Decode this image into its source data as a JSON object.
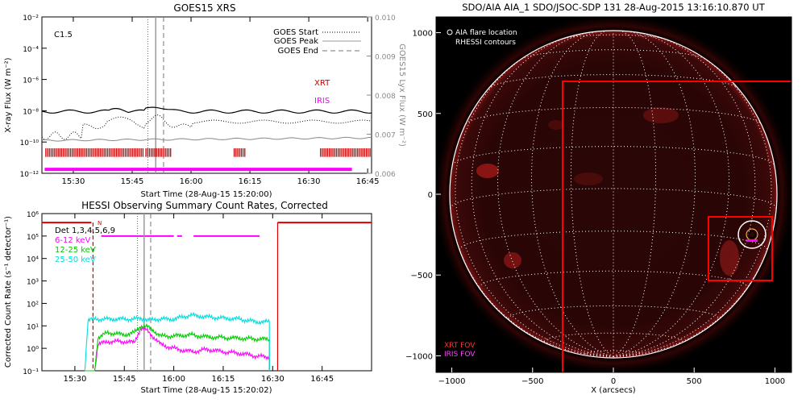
{
  "chart_data": [
    {
      "type": "line",
      "title": "GOES15 XRS",
      "xlabel": "Start Time (28-Aug-15 15:20:00)",
      "ylabel": "X-ray Flux (W m⁻²)",
      "y2label": "GOES15 Lyx Flux (W m⁻²)",
      "xlim": [
        22,
        84
      ],
      "ylim": [
        -12,
        -2
      ],
      "yscale": "log",
      "y2lim": [
        0.006,
        0.01
      ],
      "x_ticks": [
        {
          "v": 30,
          "label": "15:30"
        },
        {
          "v": 45,
          "label": "15:45"
        },
        {
          "v": 60,
          "label": "16:00"
        },
        {
          "v": 75,
          "label": "16:15"
        }
      ],
      "x_tick_labels_extra": [
        "16:30",
        "16:45"
      ],
      "x_ticks_extra_v": [
        90,
        105
      ],
      "y_tick_labels": [
        "10⁻¹²",
        "10⁻¹⁰",
        "10⁻⁸",
        "10⁻⁶",
        "10⁻⁴",
        "10⁻²"
      ],
      "y_tick_exp": [
        -12,
        -10,
        -8,
        -6,
        -4,
        -2
      ],
      "y2_tick_labels": [
        "0.006",
        "0.007",
        "0.008",
        "0.009",
        "0.010"
      ],
      "y2_tick_vals": [
        0.006,
        0.007,
        0.008,
        0.009,
        0.01
      ],
      "class_label": "C1.5",
      "legend": [
        {
          "name": "GOES Start",
          "style": "dotted"
        },
        {
          "name": "GOES Peak",
          "style": "solid"
        },
        {
          "name": "GOES End",
          "style": "dashed"
        }
      ],
      "event_lines": {
        "start": 49,
        "peak": 51,
        "end": 53
      },
      "labels": {
        "xrt": "XRT",
        "iris": "IRIS"
      },
      "colors": {
        "xrt": "#cc0000",
        "iris": "#ff00ff",
        "axis": "#000000",
        "lyx": "#888888"
      }
    },
    {
      "type": "line",
      "title": "HESSI Observing Summary Count Rates, Corrected",
      "xlabel": "Start Time (28-Aug-15 15:20:02)",
      "ylabel": "Corrected Count Rate (s⁻¹ detector⁻¹)",
      "ylim": [
        -1,
        6
      ],
      "yscale": "log",
      "y_tick_labels": [
        "10⁻¹",
        "10⁰",
        "10¹",
        "10²",
        "10³",
        "10⁴",
        "10⁵",
        "10⁶"
      ],
      "y_tick_exp": [
        -1,
        0,
        1,
        2,
        3,
        4,
        5,
        6
      ],
      "x_tick_labels": [
        "15:30",
        "15:45",
        "16:00",
        "16:15",
        "16:30",
        "16:45"
      ],
      "x_tick_vals": [
        30,
        45,
        60,
        75,
        90,
        105
      ],
      "xlim": [
        20,
        120
      ],
      "legend_title": "Det 1,3,4,5,6,9",
      "n_label": "N",
      "series": [
        {
          "name": "6-12 keV",
          "color": "#ff00ff",
          "x": [
            33,
            36,
            37,
            40,
            45,
            48,
            50,
            52,
            54,
            56,
            58,
            60,
            63,
            66,
            70,
            75,
            80,
            85,
            89
          ],
          "y": [
            0.1,
            0.1,
            1.5,
            2.0,
            2.0,
            1.8,
            8.0,
            6.0,
            3.0,
            1.5,
            1.2,
            1.0,
            0.8,
            0.7,
            0.9,
            0.7,
            0.6,
            0.45,
            0.4
          ]
        },
        {
          "name": "12-25 keV",
          "color": "#00cc00",
          "x": [
            33,
            36,
            37,
            40,
            45,
            48,
            50,
            52,
            54,
            56,
            60,
            65,
            70,
            75,
            80,
            85,
            89
          ],
          "y": [
            0.1,
            0.1,
            3.0,
            5.0,
            4.0,
            5.0,
            10.0,
            9.0,
            6.0,
            3.5,
            3.5,
            4.0,
            3.2,
            3.0,
            2.8,
            2.6,
            2.5
          ]
        },
        {
          "name": "25-50 keV",
          "color": "#00dddd",
          "x": [
            33,
            34,
            36,
            40,
            45,
            48,
            50,
            52,
            55,
            60,
            65,
            70,
            75,
            80,
            85,
            89
          ],
          "y": [
            0.1,
            18,
            20,
            20,
            20,
            20,
            22,
            18,
            20,
            20,
            30,
            25,
            22,
            20,
            15,
            15
          ]
        }
      ]
    },
    {
      "type": "scatter",
      "title": "SDO/AIA AIA_1 SDO/JSOC-SDP 131 28-Aug-2015 13:16:10.870 UT",
      "xlabel": "X (arcsecs)",
      "ylabel": "",
      "xlim": [
        -1100,
        1100
      ],
      "ylim": [
        -1100,
        1100
      ],
      "x_tick_vals": [
        -1000,
        -500,
        0,
        500,
        1000
      ],
      "x_tick_labels": [
        "−1000",
        "−500",
        "0",
        "500",
        "1000"
      ],
      "y_tick_vals": [
        1000,
        500,
        0,
        -500,
        -1000
      ],
      "y_tick_labels": [
        "1000",
        "500",
        "0",
        "−500",
        "−1000"
      ],
      "legend": [
        {
          "name": "AIA flare location"
        },
        {
          "name": "RHESSI contours"
        }
      ],
      "fov_labels": [
        {
          "name": "XRT FOV",
          "color": "#ff3333"
        },
        {
          "name": "IRIS FOV",
          "color": "#ff44ff"
        }
      ],
      "flare_location": {
        "x": 860,
        "y": -245
      },
      "solar_radius": 950
    }
  ]
}
